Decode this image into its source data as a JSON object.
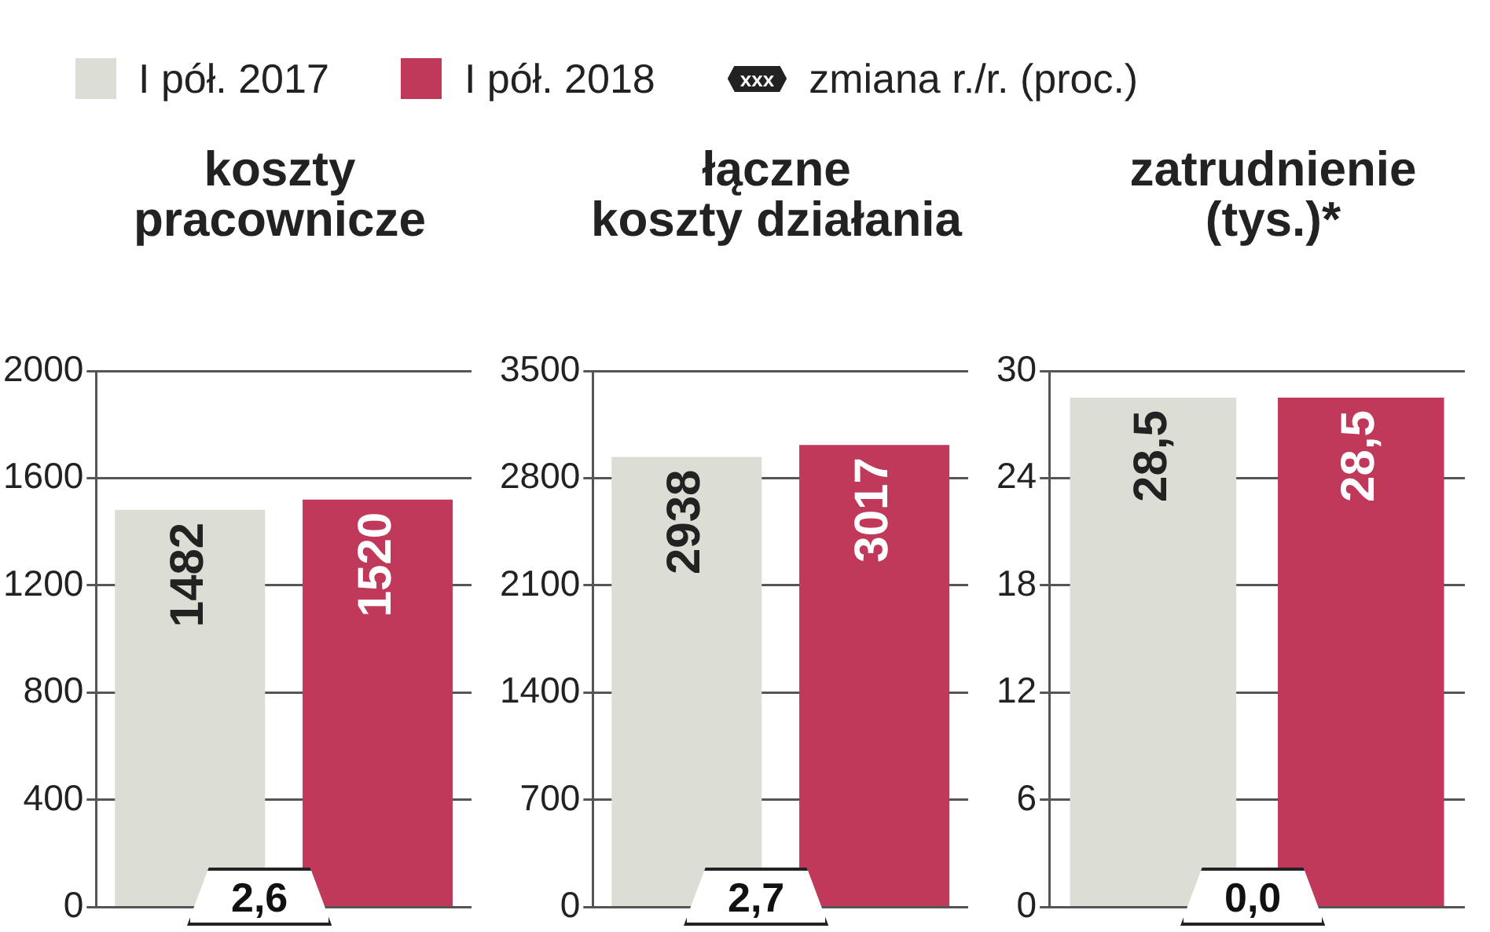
{
  "chart_data": [
    {
      "type": "bar",
      "title": "koszty\npracownicze",
      "categories": [
        null,
        null
      ],
      "series": [
        {
          "name": "I pół. 2017",
          "color": "#dcddd5",
          "values": [
            1482,
            null
          ]
        },
        {
          "name": "I pół. 2018",
          "color": "#c0395a",
          "values": [
            null,
            1520
          ]
        }
      ],
      "ylim": [
        0,
        2000
      ],
      "yticks": [
        0,
        400,
        800,
        1200,
        1600,
        2000
      ],
      "grid": "y",
      "legend": "top",
      "data_labels": true,
      "annotations": [
        "2,6",
        "xxx",
        "zmiana r./r. (proc.)"
      ]
    },
    {
      "type": "bar",
      "title": "łączne\nkoszty działania",
      "categories": [
        null,
        null
      ],
      "series": [
        {
          "color": "#dcddd5",
          "values": [
            2938,
            null
          ]
        },
        {
          "color": "#c0395a",
          "values": [
            null,
            3017
          ]
        }
      ],
      "ylim": [
        0,
        3500
      ],
      "yticks": [
        0,
        700,
        1400,
        2100,
        2800,
        3500
      ],
      "grid": "y",
      "data_labels": true,
      "annotations": [
        "2,7"
      ]
    },
    {
      "type": "bar",
      "title": "zatrudnienie\n(tys.)*",
      "categories": [
        null,
        null
      ],
      "series": [
        {
          "color": "#dcddd5",
          "values": [
            28.5,
            null
          ],
          "value_labels": [
            "28,5",
            null
          ]
        },
        {
          "color": "#c0395a",
          "values": [
            null,
            28.5
          ],
          "value_labels": [
            null,
            "28,5"
          ]
        }
      ],
      "ylim": [
        0,
        30
      ],
      "yticks": [
        0,
        6,
        12,
        18,
        24,
        30
      ],
      "grid": "y",
      "annotations": [
        "0,0"
      ]
    }
  ]
}
